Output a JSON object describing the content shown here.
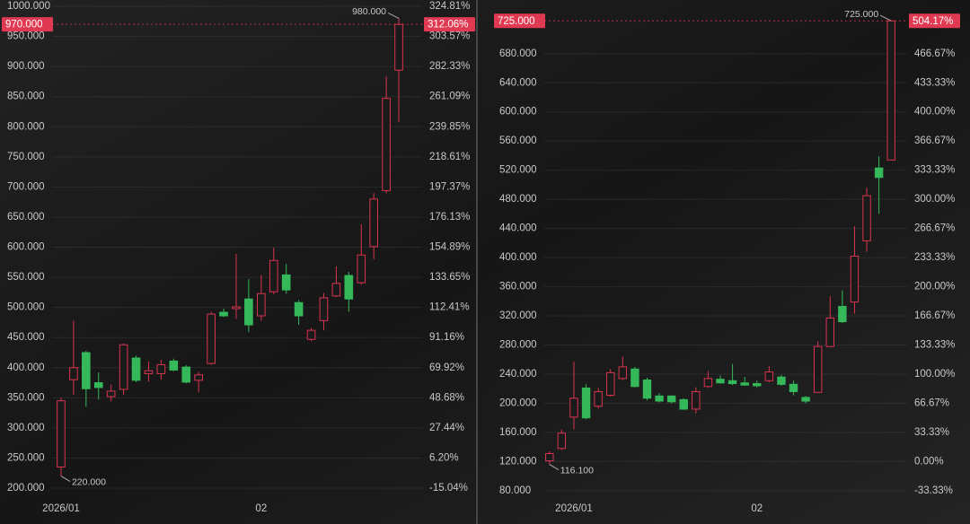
{
  "chart_data": [
    {
      "type": "candlestick",
      "up_color": "#d9344f",
      "down_color": "#35b85a",
      "grid": true,
      "categories": [
        "2026/01",
        null,
        null,
        null,
        null,
        null,
        null,
        null,
        null,
        null,
        null,
        null,
        null,
        null,
        null,
        null,
        "02",
        null,
        null,
        null,
        null,
        null,
        null,
        null,
        null,
        null,
        null,
        null
      ],
      "open": [
        235,
        380,
        425,
        375,
        352,
        364,
        416,
        390,
        390,
        411,
        401,
        379,
        407,
        492,
        498,
        514,
        486,
        526,
        554,
        508,
        447,
        478,
        519,
        553,
        541,
        601,
        694,
        894
      ],
      "high": [
        350,
        478,
        428,
        392,
        372,
        440,
        420,
        410,
        413,
        415,
        404,
        393,
        493,
        498,
        589,
        547,
        554,
        599,
        572,
        512,
        466,
        524,
        568,
        559,
        638,
        690,
        884,
        980
      ],
      "low": [
        220,
        355,
        335,
        347,
        344,
        355,
        376,
        377,
        380,
        394,
        374,
        359,
        405,
        484,
        481,
        459,
        478,
        522,
        523,
        471,
        444,
        462,
        517,
        493,
        538,
        580,
        690,
        808
      ],
      "close": [
        345,
        400,
        365,
        367,
        361,
        438,
        379,
        395,
        405,
        396,
        376,
        388,
        489,
        486,
        501,
        471,
        523,
        578,
        529,
        486,
        462,
        516,
        540,
        514,
        587,
        680,
        847,
        970
      ],
      "ylim": [
        200,
        1000
      ],
      "yticks": [
        {
          "value": 200,
          "label": "200.000"
        },
        {
          "value": 250,
          "label": "250.000"
        },
        {
          "value": 300,
          "label": "300.000"
        },
        {
          "value": 350,
          "label": "350.000"
        },
        {
          "value": 400,
          "label": "400.000"
        },
        {
          "value": 450,
          "label": "450.000"
        },
        {
          "value": 500,
          "label": "500.000"
        },
        {
          "value": 550,
          "label": "550.000"
        },
        {
          "value": 600,
          "label": "600.000"
        },
        {
          "value": 650,
          "label": "650.000"
        },
        {
          "value": 700,
          "label": "700.000"
        },
        {
          "value": 750,
          "label": "750.000"
        },
        {
          "value": 800,
          "label": "800.000"
        },
        {
          "value": 850,
          "label": "850.000"
        },
        {
          "value": 900,
          "label": "900.000"
        },
        {
          "value": 950,
          "label": "950.000"
        },
        {
          "value": 1000,
          "label": "1000.000"
        }
      ],
      "y2lim": [
        -15.04,
        324.81
      ],
      "y2ticks": [
        {
          "value": -15.04,
          "label": "-15.04%"
        },
        {
          "value": 6.2,
          "label": "6.20%"
        },
        {
          "value": 27.44,
          "label": "27.44%"
        },
        {
          "value": 48.68,
          "label": "48.68%"
        },
        {
          "value": 69.92,
          "label": "69.92%"
        },
        {
          "value": 91.16,
          "label": "91.16%"
        },
        {
          "value": 112.41,
          "label": "112.41%"
        },
        {
          "value": 133.65,
          "label": "133.65%"
        },
        {
          "value": 154.89,
          "label": "154.89%"
        },
        {
          "value": 176.13,
          "label": "176.13%"
        },
        {
          "value": 197.37,
          "label": "197.37%"
        },
        {
          "value": 218.61,
          "label": "218.61%"
        },
        {
          "value": 239.85,
          "label": "239.85%"
        },
        {
          "value": 261.09,
          "label": "261.09%"
        },
        {
          "value": 282.33,
          "label": "282.33%"
        },
        {
          "value": 303.57,
          "label": "303.57%"
        },
        {
          "value": 324.81,
          "label": "324.81%"
        }
      ],
      "high_label": {
        "value": 980,
        "label": "980.000"
      },
      "low_label": {
        "value": 220,
        "label": "220.000"
      },
      "last_price": {
        "value": 970,
        "label": "970.000"
      },
      "last_change": {
        "value": 312.06,
        "label": "312.06%"
      }
    },
    {
      "type": "candlestick",
      "up_color": "#d9344f",
      "down_color": "#35b85a",
      "grid": true,
      "categories": [
        null,
        null,
        "2026/01",
        null,
        null,
        null,
        null,
        null,
        null,
        null,
        null,
        null,
        null,
        null,
        null,
        null,
        null,
        "02",
        null,
        null,
        null,
        null,
        null,
        null,
        null,
        null,
        null,
        null,
        null
      ],
      "open": [
        121,
        138,
        181,
        221,
        196,
        211,
        234,
        247,
        232,
        210,
        210,
        205,
        192,
        223,
        233,
        231,
        228,
        227,
        231,
        236,
        226,
        208,
        215,
        278,
        333,
        339,
        423,
        523,
        534
      ],
      "high": [
        134,
        164,
        257,
        226,
        221,
        247,
        264,
        250,
        235,
        214,
        211,
        207,
        222,
        244,
        238,
        254,
        236,
        231,
        251,
        239,
        231,
        210,
        285,
        347,
        355,
        443,
        496,
        539,
        725
      ],
      "low": [
        116.1,
        136,
        164,
        178,
        193,
        209,
        232,
        222,
        204,
        201,
        200,
        191,
        186,
        221,
        227,
        225,
        224,
        222,
        229,
        224,
        211,
        200,
        215,
        278,
        310,
        323,
        408,
        460,
        534
      ],
      "close": [
        131,
        159,
        207,
        180,
        216,
        242,
        250,
        223,
        207,
        203,
        202,
        192,
        216,
        234,
        228,
        227,
        225,
        224,
        243,
        226,
        216,
        203,
        278,
        317,
        312,
        402,
        485,
        510,
        725
      ],
      "ylim": [
        70,
        745
      ],
      "yticks": [
        {
          "value": 80,
          "label": "80.000"
        },
        {
          "value": 120,
          "label": "120.000"
        },
        {
          "value": 160,
          "label": "160.000"
        },
        {
          "value": 200,
          "label": "200.000"
        },
        {
          "value": 240,
          "label": "240.000"
        },
        {
          "value": 280,
          "label": "280.000"
        },
        {
          "value": 320,
          "label": "320.000"
        },
        {
          "value": 360,
          "label": "360.000"
        },
        {
          "value": 400,
          "label": "400.000"
        },
        {
          "value": 440,
          "label": "440.000"
        },
        {
          "value": 480,
          "label": "480.000"
        },
        {
          "value": 520,
          "label": "520.000"
        },
        {
          "value": 560,
          "label": "560.000"
        },
        {
          "value": 600,
          "label": "600.000"
        },
        {
          "value": 640,
          "label": "640.000"
        },
        {
          "value": 680,
          "label": "680.000"
        }
      ],
      "y2lim": [
        -41.67,
        520.83
      ],
      "y2ticks": [
        {
          "value": -33.33,
          "label": "-33.33%"
        },
        {
          "value": 0,
          "label": "0.00%"
        },
        {
          "value": 33.33,
          "label": "33.33%"
        },
        {
          "value": 66.67,
          "label": "66.67%"
        },
        {
          "value": 100,
          "label": "100.00%"
        },
        {
          "value": 133.33,
          "label": "133.33%"
        },
        {
          "value": 166.67,
          "label": "166.67%"
        },
        {
          "value": 200,
          "label": "200.00%"
        },
        {
          "value": 233.33,
          "label": "233.33%"
        },
        {
          "value": 266.67,
          "label": "266.67%"
        },
        {
          "value": 300,
          "label": "300.00%"
        },
        {
          "value": 333.33,
          "label": "333.33%"
        },
        {
          "value": 366.67,
          "label": "366.67%"
        },
        {
          "value": 400,
          "label": "400.00%"
        },
        {
          "value": 433.33,
          "label": "433.33%"
        },
        {
          "value": 466.67,
          "label": "466.67%"
        }
      ],
      "high_label": {
        "value": 725,
        "label": "725.000"
      },
      "low_label": {
        "value": 116.1,
        "label": "116.100"
      },
      "last_price": {
        "value": 725,
        "label": "725.000"
      },
      "last_change": {
        "value": 504.17,
        "label": "504.17%"
      }
    }
  ]
}
